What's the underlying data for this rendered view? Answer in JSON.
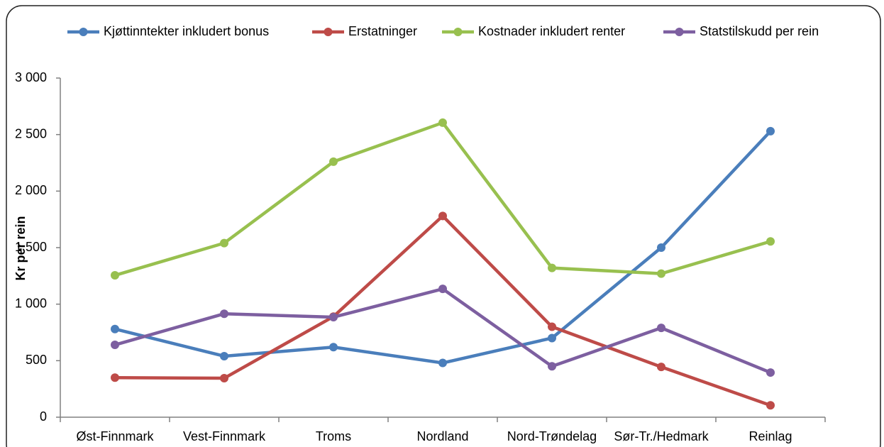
{
  "chart_data": {
    "type": "line",
    "ylabel": "Kr per rein",
    "categories": [
      "Øst-Finnmark",
      "Vest-Finnmark",
      "Troms",
      "Nordland",
      "Nord-Trøndelag",
      "Sør-Tr./Hedmark",
      "Reinlag"
    ],
    "series": [
      {
        "name": "Kjøttinntekter inkludert bonus",
        "color": "#4a7ebb",
        "values": [
          780,
          540,
          620,
          480,
          700,
          1500,
          2530
        ]
      },
      {
        "name": "Erstatninger",
        "color": "#be4b48",
        "values": [
          350,
          345,
          890,
          1780,
          800,
          445,
          105
        ]
      },
      {
        "name": "Kostnader inkludert renter",
        "color": "#98c04f",
        "values": [
          1255,
          1540,
          2260,
          2605,
          1320,
          1270,
          1555
        ]
      },
      {
        "name": "Statstilskudd per rein",
        "color": "#7d5fa0",
        "values": [
          640,
          915,
          885,
          1135,
          450,
          790,
          395
        ]
      }
    ],
    "ylim": [
      0,
      3000
    ],
    "yticks": [
      0,
      500,
      {
        "value": 1000,
        "label": "1 000"
      },
      {
        "value": 1500,
        "label": "1 500"
      },
      {
        "value": 2000,
        "label": "2 000"
      },
      {
        "value": 2500,
        "label": "2 500"
      },
      {
        "value": 3000,
        "label": "3 000"
      }
    ],
    "grid": false,
    "legend": "top"
  }
}
